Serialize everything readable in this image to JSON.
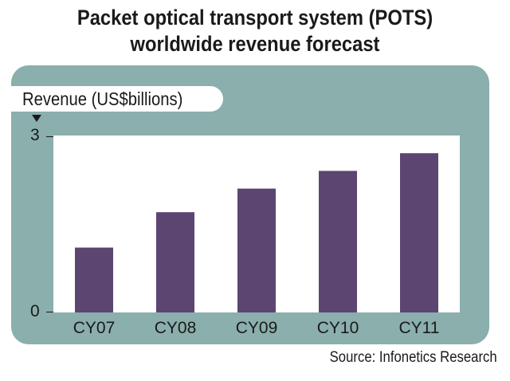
{
  "chart_data": {
    "type": "bar",
    "title": [
      "Packet optical transport system (POTS)",
      "worldwide revenue forecast"
    ],
    "ylabel": "Revenue (US$billions)",
    "categories": [
      "CY07",
      "CY08",
      "CY09",
      "CY10",
      "CY11"
    ],
    "values": [
      1.1,
      1.7,
      2.1,
      2.4,
      2.7
    ],
    "ylim": [
      0,
      3
    ],
    "yticks": [
      "3",
      "0"
    ],
    "source": "Source: Infonetics Research",
    "colors": {
      "bar": "#5c4570",
      "panel": "#8aafad",
      "plot": "#ffffff"
    }
  }
}
